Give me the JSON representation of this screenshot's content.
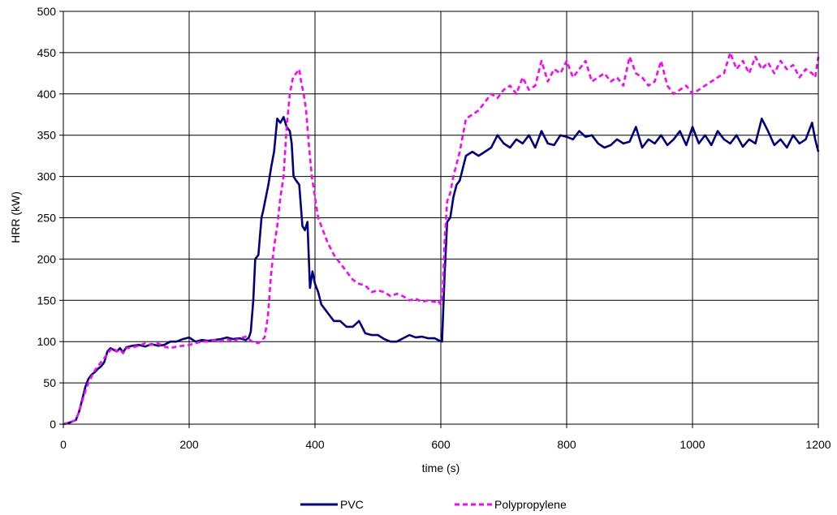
{
  "chart_data": {
    "type": "line",
    "title": "",
    "xlabel": "time (s)",
    "ylabel": "HRR (kW)",
    "xlim": [
      0,
      1200
    ],
    "ylim": [
      0,
      500
    ],
    "xticks": [
      0,
      200,
      400,
      600,
      800,
      1000,
      1200
    ],
    "yticks": [
      0,
      50,
      100,
      150,
      200,
      250,
      300,
      350,
      400,
      450,
      500
    ],
    "grid": true,
    "legend_position": "bottom",
    "series": [
      {
        "name": "PVC",
        "color": "#000080",
        "style": "solid",
        "x": [
          0,
          10,
          20,
          25,
          30,
          35,
          40,
          45,
          50,
          55,
          60,
          65,
          70,
          75,
          80,
          85,
          90,
          95,
          100,
          110,
          120,
          130,
          140,
          150,
          160,
          170,
          180,
          190,
          200,
          210,
          220,
          230,
          240,
          250,
          260,
          270,
          280,
          290,
          295,
          298,
          302,
          305,
          310,
          315,
          318,
          322,
          326,
          330,
          335,
          340,
          345,
          350,
          355,
          360,
          363,
          366,
          370,
          375,
          380,
          384,
          388,
          392,
          396,
          400,
          405,
          410,
          420,
          430,
          440,
          450,
          460,
          470,
          480,
          490,
          500,
          510,
          520,
          530,
          540,
          550,
          560,
          570,
          580,
          590,
          598,
          602,
          606,
          610,
          615,
          620,
          625,
          630,
          635,
          640,
          650,
          660,
          670,
          680,
          690,
          700,
          710,
          720,
          730,
          740,
          750,
          760,
          770,
          780,
          790,
          800,
          810,
          820,
          830,
          840,
          850,
          860,
          870,
          880,
          890,
          900,
          910,
          920,
          930,
          940,
          950,
          960,
          970,
          980,
          990,
          1000,
          1010,
          1020,
          1030,
          1040,
          1050,
          1060,
          1070,
          1080,
          1090,
          1100,
          1110,
          1120,
          1130,
          1140,
          1150,
          1160,
          1170,
          1180,
          1190,
          1195,
          1200
        ],
        "y": [
          0,
          2,
          5,
          15,
          30,
          45,
          55,
          60,
          63,
          67,
          70,
          75,
          88,
          92,
          90,
          88,
          92,
          87,
          93,
          95,
          96,
          94,
          97,
          95,
          96,
          100,
          100,
          103,
          105,
          100,
          102,
          101,
          102,
          103,
          105,
          103,
          104,
          102,
          105,
          112,
          150,
          200,
          205,
          250,
          260,
          275,
          290,
          310,
          330,
          370,
          365,
          372,
          360,
          355,
          340,
          300,
          295,
          290,
          240,
          235,
          245,
          165,
          185,
          170,
          160,
          145,
          135,
          125,
          125,
          118,
          118,
          125,
          110,
          108,
          108,
          103,
          100,
          100,
          104,
          108,
          105,
          106,
          104,
          104,
          101,
          100,
          180,
          245,
          250,
          275,
          290,
          295,
          310,
          325,
          330,
          325,
          330,
          335,
          350,
          340,
          335,
          345,
          340,
          350,
          335,
          355,
          340,
          338,
          350,
          348,
          345,
          355,
          348,
          350,
          340,
          335,
          338,
          345,
          340,
          342,
          360,
          335,
          345,
          340,
          350,
          338,
          345,
          355,
          338,
          360,
          340,
          350,
          338,
          355,
          345,
          340,
          350,
          336,
          345,
          340,
          370,
          355,
          338,
          345,
          335,
          350,
          340,
          345,
          365,
          345,
          330
        ]
      },
      {
        "name": "Polypropylene",
        "color": "#ff00ff",
        "style": "dashed",
        "x": [
          0,
          10,
          20,
          25,
          30,
          35,
          40,
          45,
          50,
          55,
          60,
          65,
          70,
          75,
          80,
          85,
          90,
          95,
          100,
          110,
          120,
          130,
          140,
          150,
          160,
          170,
          180,
          190,
          200,
          210,
          220,
          230,
          240,
          250,
          260,
          270,
          280,
          290,
          300,
          310,
          320,
          325,
          330,
          335,
          340,
          345,
          350,
          355,
          360,
          365,
          370,
          375,
          378,
          382,
          386,
          390,
          395,
          400,
          405,
          410,
          420,
          430,
          440,
          450,
          460,
          470,
          480,
          490,
          500,
          510,
          520,
          530,
          540,
          550,
          560,
          570,
          580,
          590,
          595,
          600,
          603,
          606,
          610,
          615,
          620,
          630,
          640,
          650,
          660,
          670,
          680,
          690,
          700,
          710,
          720,
          730,
          740,
          750,
          760,
          770,
          780,
          790,
          800,
          810,
          820,
          830,
          840,
          850,
          860,
          870,
          880,
          890,
          900,
          910,
          920,
          930,
          940,
          950,
          960,
          970,
          980,
          990,
          1000,
          1010,
          1020,
          1030,
          1040,
          1050,
          1060,
          1070,
          1080,
          1090,
          1100,
          1110,
          1120,
          1130,
          1140,
          1150,
          1160,
          1170,
          1180,
          1190,
          1195,
          1200
        ],
        "y": [
          0,
          2,
          5,
          15,
          28,
          40,
          50,
          58,
          65,
          70,
          75,
          80,
          85,
          90,
          92,
          88,
          90,
          86,
          92,
          93,
          95,
          98,
          96,
          98,
          94,
          92,
          94,
          95,
          96,
          98,
          100,
          100,
          102,
          100,
          103,
          100,
          104,
          106,
          100,
          98,
          105,
          130,
          180,
          215,
          240,
          275,
          300,
          360,
          400,
          420,
          425,
          430,
          415,
          400,
          380,
          340,
          300,
          275,
          250,
          240,
          220,
          205,
          195,
          185,
          175,
          170,
          168,
          160,
          162,
          160,
          155,
          158,
          155,
          150,
          152,
          148,
          150,
          148,
          150,
          145,
          160,
          220,
          270,
          280,
          300,
          330,
          370,
          375,
          380,
          390,
          400,
          395,
          405,
          410,
          400,
          420,
          405,
          410,
          440,
          415,
          430,
          425,
          440,
          420,
          430,
          440,
          415,
          420,
          425,
          415,
          420,
          410,
          445,
          425,
          420,
          410,
          415,
          440,
          410,
          400,
          405,
          410,
          400,
          405,
          410,
          415,
          420,
          425,
          450,
          430,
          440,
          425,
          445,
          430,
          438,
          425,
          440,
          430,
          435,
          420,
          430,
          425,
          420,
          445
        ]
      }
    ]
  }
}
